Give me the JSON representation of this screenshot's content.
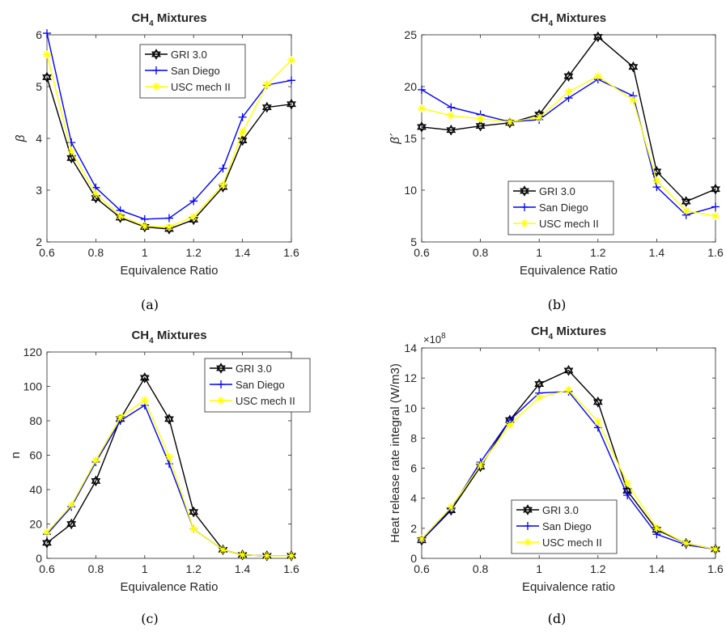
{
  "legend_labels": [
    "GRI 3.0",
    "San Diego",
    "USC mech II"
  ],
  "series_colors": [
    "#000000",
    "#0000ff",
    "#ffff00"
  ],
  "series_markers": [
    "hexagram",
    "plus",
    "asterisk"
  ],
  "chart_data": [
    {
      "type": "line",
      "title_main": "CH",
      "title_sub": "4",
      "title_rest": " Mixtures",
      "xlabel": "Equivalence Ratio",
      "ylabel": "β",
      "xlim": [
        0.6,
        1.6
      ],
      "ylim": [
        2,
        6
      ],
      "xticks": [
        "0.6",
        "0.8",
        "1",
        "1.2",
        "1.4",
        "1.6"
      ],
      "yticks": [
        "2",
        "3",
        "4",
        "5",
        "6"
      ],
      "grid": false,
      "legend_position": "top-center",
      "caption": "(a)",
      "x": [
        0.6,
        0.7,
        0.8,
        0.9,
        1.0,
        1.1,
        1.2,
        1.32,
        1.4,
        1.5,
        1.6
      ],
      "series": [
        {
          "name": "GRI 3.0",
          "values": [
            5.18,
            3.62,
            2.85,
            2.47,
            2.29,
            2.25,
            2.43,
            3.06,
            3.96,
            4.6,
            4.66
          ]
        },
        {
          "name": "San Diego",
          "values": [
            6.03,
            3.92,
            3.05,
            2.61,
            2.44,
            2.46,
            2.79,
            3.42,
            4.41,
            5.03,
            5.12
          ]
        },
        {
          "name": "USC mech II",
          "values": [
            5.62,
            3.75,
            2.93,
            2.5,
            2.31,
            2.29,
            2.49,
            3.1,
            4.12,
            5.04,
            5.51
          ]
        }
      ]
    },
    {
      "type": "line",
      "title_main": "CH",
      "title_sub": "4",
      "title_rest": " Mixtures",
      "xlabel": "Equivalence Ratio",
      "ylabel": "β´",
      "xlim": [
        0.6,
        1.6
      ],
      "ylim": [
        5,
        25
      ],
      "xticks": [
        "0.6",
        "0.8",
        "1",
        "1.2",
        "1.4",
        "1.6"
      ],
      "yticks": [
        "5",
        "10",
        "15",
        "20",
        "25"
      ],
      "grid": false,
      "legend_position": "bottom-left",
      "caption": "(b)",
      "x": [
        0.6,
        0.7,
        0.8,
        0.9,
        1.0,
        1.1,
        1.2,
        1.32,
        1.4,
        1.5,
        1.6
      ],
      "series": [
        {
          "name": "GRI 3.0",
          "values": [
            16.1,
            15.8,
            16.2,
            16.5,
            17.3,
            21.0,
            24.8,
            21.9,
            11.8,
            8.9,
            10.1
          ]
        },
        {
          "name": "San Diego",
          "values": [
            19.7,
            18.0,
            17.3,
            16.6,
            16.8,
            18.9,
            20.7,
            19.1,
            10.3,
            7.6,
            8.4
          ]
        },
        {
          "name": "USC mech II",
          "values": [
            17.9,
            17.2,
            16.9,
            16.6,
            17.0,
            19.5,
            21.0,
            18.7,
            10.9,
            8.0,
            7.5
          ]
        }
      ]
    },
    {
      "type": "line",
      "title_main": "CH",
      "title_sub": "4",
      "title_rest": " Mixtures",
      "xlabel": "Equivalence Ratio",
      "ylabel": "n",
      "xlim": [
        0.6,
        1.6
      ],
      "ylim": [
        0,
        120
      ],
      "xticks": [
        "0.6",
        "0.8",
        "1",
        "1.2",
        "1.4",
        "1.6"
      ],
      "yticks": [
        "0",
        "20",
        "40",
        "60",
        "80",
        "100",
        "120"
      ],
      "grid": false,
      "legend_position": "top-right",
      "caption": "(c)",
      "x": [
        0.6,
        0.7,
        0.8,
        0.9,
        1.0,
        1.1,
        1.2,
        1.32,
        1.4,
        1.5,
        1.6
      ],
      "series": [
        {
          "name": "GRI 3.0",
          "values": [
            9,
            20,
            45,
            81,
            105,
            81,
            27,
            5,
            2,
            1.5,
            1.5
          ]
        },
        {
          "name": "San Diego",
          "values": [
            14,
            30,
            56,
            80,
            89,
            55,
            17,
            5,
            2,
            1.5,
            1.5
          ]
        },
        {
          "name": "USC mech II",
          "values": [
            15,
            31,
            57,
            82,
            92,
            59,
            17,
            5,
            2,
            1.5,
            1.5
          ]
        }
      ]
    },
    {
      "type": "line",
      "title_main": "CH",
      "title_sub": "4",
      "title_rest": " Mixtures",
      "xlabel": "Equivalence ratio",
      "ylabel": "Heat release rate integral (W/m3)",
      "exponent_label": "×10",
      "exponent_power": "8",
      "xlim": [
        0.6,
        1.6
      ],
      "ylim": [
        0,
        14
      ],
      "xticks": [
        "0.6",
        "0.8",
        "1",
        "1.2",
        "1.4",
        "1.6"
      ],
      "yticks": [
        "0",
        "2",
        "4",
        "6",
        "8",
        "10",
        "12",
        "14"
      ],
      "grid": false,
      "legend_position": "bottom-center",
      "caption": "(d)",
      "x": [
        0.6,
        0.7,
        0.8,
        0.9,
        1.0,
        1.1,
        1.2,
        1.3,
        1.4,
        1.5,
        1.6
      ],
      "series": [
        {
          "name": "GRI 3.0",
          "values": [
            1.2,
            3.2,
            6.1,
            9.2,
            11.6,
            12.5,
            10.4,
            4.5,
            1.9,
            1.0,
            0.6
          ]
        },
        {
          "name": "San Diego",
          "values": [
            1.2,
            3.3,
            6.4,
            9.2,
            11.0,
            11.1,
            8.7,
            4.2,
            1.6,
            0.9,
            0.6
          ]
        },
        {
          "name": "USC mech II",
          "values": [
            1.3,
            3.4,
            6.2,
            8.9,
            10.7,
            11.2,
            9.1,
            5.0,
            2.0,
            1.0,
            0.6
          ]
        }
      ]
    }
  ]
}
